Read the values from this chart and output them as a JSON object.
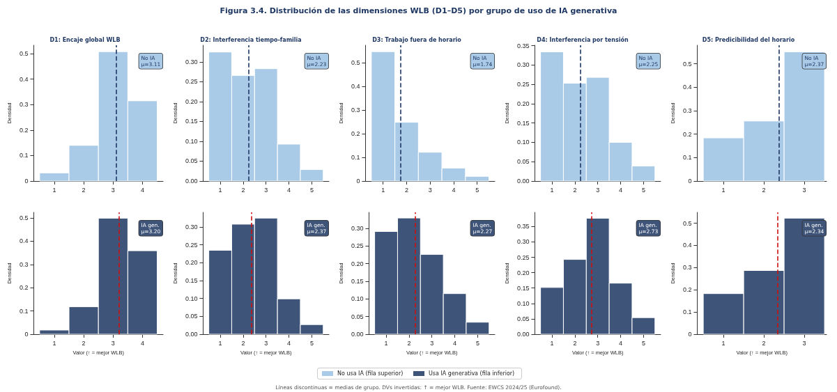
{
  "chart_data": [
    {
      "type": "other",
      "title": "Figura 3.4. Distribución de las dimensiones WLB (D1–D5) por grupo de uso de IA generativa",
      "annotations": [
        "Líneas discontinuas = medias de grupo. DVs invertidas: ↑ = mejor WLB. Fuente: EWCS 2024/25 (Eurofound)."
      ]
    },
    {
      "type": "histogram",
      "title": "D1: Encaje global WLB",
      "ylabel": "Densidad",
      "bins": [
        0.5,
        1.5,
        2.5,
        3.5,
        4.5
      ],
      "series": [
        {
          "name": "No usa IA (fila superior)",
          "color": "#aacbe8",
          "values": [
            0.032,
            0.14,
            0.508,
            0.315
          ]
        }
      ],
      "xlim": [
        0.3,
        4.7
      ],
      "xticks": [
        1,
        2,
        3,
        4
      ],
      "ylim": [
        0,
        0.533
      ],
      "yticks": [
        0.0,
        0.1,
        0.2,
        0.3,
        0.4,
        0.5
      ],
      "ref_lines": [
        {
          "axis": "x",
          "value": 3.11,
          "color": "#1f3864",
          "line_style": "dashed"
        }
      ],
      "annotations": [
        "No IA\nμ=3.11"
      ],
      "grid": false,
      "legend": "bottom"
    },
    {
      "type": "histogram",
      "title": "D2: Interferencia tiempo-familia",
      "ylabel": "Densidad",
      "bins": [
        0.5,
        1.5,
        2.5,
        3.5,
        4.5,
        5.5
      ],
      "series": [
        {
          "color": "#aacbe8",
          "values": [
            0.325,
            0.266,
            0.283,
            0.093,
            0.029
          ]
        }
      ],
      "xlim": [
        0.25,
        5.75
      ],
      "xticks": [
        1,
        2,
        3,
        4,
        5
      ],
      "ylim": [
        0,
        0.342
      ],
      "yticks": [
        {
          "value": 0,
          "label": "0.00"
        },
        {
          "value": 0.05,
          "label": "0.05"
        },
        {
          "value": 0.1,
          "label": "0.10"
        },
        {
          "value": 0.15,
          "label": "0.15"
        },
        {
          "value": 0.2,
          "label": "0.20"
        },
        {
          "value": 0.25,
          "label": "0.25"
        },
        {
          "value": 0.3,
          "label": "0.30"
        }
      ],
      "ref_lines": [
        {
          "axis": "x",
          "value": 2.23,
          "color": "#1f3864",
          "line_style": "dashed"
        }
      ],
      "annotations": [
        "No IA\nμ=2.23"
      ],
      "grid": false
    },
    {
      "type": "histogram",
      "title": "D3: Trabajo fuera de horario",
      "ylabel": "Densidad",
      "bins": [
        0.5,
        1.5,
        2.5,
        3.5,
        4.5,
        5.5
      ],
      "series": [
        {
          "color": "#aacbe8",
          "values": [
            0.548,
            0.249,
            0.122,
            0.055,
            0.02
          ]
        }
      ],
      "xlim": [
        0.25,
        5.75
      ],
      "xticks": [
        1,
        2,
        3,
        4,
        5
      ],
      "ylim": [
        0,
        0.575
      ],
      "yticks": [
        0.0,
        0.1,
        0.2,
        0.3,
        0.4,
        0.5
      ],
      "ref_lines": [
        {
          "axis": "x",
          "value": 1.74,
          "color": "#1f3864",
          "line_style": "dashed"
        }
      ],
      "annotations": [
        "No IA\nμ=1.74"
      ],
      "grid": false
    },
    {
      "type": "histogram",
      "title": "D4: Interferencia por tensión",
      "ylabel": "Densidad",
      "bins": [
        0.5,
        1.5,
        2.5,
        3.5,
        4.5,
        5.5
      ],
      "series": [
        {
          "color": "#aacbe8",
          "values": [
            0.334,
            0.253,
            0.268,
            0.1,
            0.039
          ]
        }
      ],
      "xlim": [
        0.25,
        5.75
      ],
      "xticks": [
        1,
        2,
        3,
        4,
        5
      ],
      "ylim": [
        0,
        0.351
      ],
      "yticks": [
        {
          "value": 0,
          "label": "0.00"
        },
        {
          "value": 0.05,
          "label": "0.05"
        },
        {
          "value": 0.1,
          "label": "0.10"
        },
        {
          "value": 0.15,
          "label": "0.15"
        },
        {
          "value": 0.2,
          "label": "0.20"
        },
        {
          "value": 0.25,
          "label": "0.25"
        },
        {
          "value": 0.3,
          "label": "0.30"
        },
        {
          "value": 0.35,
          "label": "0.35"
        }
      ],
      "ref_lines": [
        {
          "axis": "x",
          "value": 2.25,
          "color": "#1f3864",
          "line_style": "dashed"
        }
      ],
      "annotations": [
        "No IA\nμ=2.25"
      ],
      "grid": false
    },
    {
      "type": "histogram",
      "title": "D5: Predicibilidad del horario",
      "ylabel": "Densidad",
      "bins": [
        0.5,
        1.5,
        2.5,
        3.5
      ],
      "series": [
        {
          "color": "#aacbe8",
          "values": [
            0.184,
            0.256,
            0.551
          ]
        }
      ],
      "xlim": [
        0.35,
        3.55
      ],
      "xticks": [
        1,
        2,
        3
      ],
      "ylim": [
        0,
        0.579
      ],
      "yticks": [
        0.0,
        0.1,
        0.2,
        0.3,
        0.4,
        0.5
      ],
      "ref_lines": [
        {
          "axis": "x",
          "value": 2.37,
          "color": "#1f3864",
          "line_style": "dashed"
        }
      ],
      "annotations": [
        "No IA\nμ=2.37"
      ],
      "grid": false
    },
    {
      "type": "histogram",
      "xlabel": "Valor (↑ = mejor WLB)",
      "ylabel": "Densidad",
      "bins": [
        0.5,
        1.5,
        2.5,
        3.5,
        4.5
      ],
      "series": [
        {
          "name": "Usa IA generativa (fila inferior)",
          "color": "#3f5479",
          "values": [
            0.018,
            0.118,
            0.499,
            0.359
          ]
        }
      ],
      "xlim": [
        0.3,
        4.7
      ],
      "xticks": [
        1,
        2,
        3,
        4
      ],
      "ylim": [
        0,
        0.524
      ],
      "yticks": [
        0.0,
        0.1,
        0.2,
        0.3,
        0.4,
        0.5
      ],
      "ref_lines": [
        {
          "axis": "x",
          "value": 3.2,
          "color": "#cc1111",
          "line_style": "dashed"
        }
      ],
      "annotations": [
        "IA gen.\nμ=3.20"
      ],
      "grid": false,
      "legend": "bottom"
    },
    {
      "type": "histogram",
      "xlabel": "Valor (↑ = mejor WLB)",
      "ylabel": "Densidad",
      "bins": [
        0.5,
        1.5,
        2.5,
        3.5,
        4.5,
        5.5
      ],
      "series": [
        {
          "color": "#3f5479",
          "values": [
            0.235,
            0.308,
            0.325,
            0.099,
            0.027
          ]
        }
      ],
      "xlim": [
        0.25,
        5.75
      ],
      "xticks": [
        1,
        2,
        3,
        4,
        5
      ],
      "ylim": [
        0,
        0.341
      ],
      "yticks": [
        {
          "value": 0,
          "label": "0.00"
        },
        {
          "value": 0.05,
          "label": "0.05"
        },
        {
          "value": 0.1,
          "label": "0.10"
        },
        {
          "value": 0.15,
          "label": "0.15"
        },
        {
          "value": 0.2,
          "label": "0.20"
        },
        {
          "value": 0.25,
          "label": "0.25"
        },
        {
          "value": 0.3,
          "label": "0.30"
        }
      ],
      "ref_lines": [
        {
          "axis": "x",
          "value": 2.37,
          "color": "#cc1111",
          "line_style": "dashed"
        }
      ],
      "annotations": [
        "IA gen.\nμ=2.37"
      ],
      "grid": false
    },
    {
      "type": "histogram",
      "xlabel": "Valor (↑ = mejor WLB)",
      "ylabel": "Densidad",
      "bins": [
        0.5,
        1.5,
        2.5,
        3.5,
        4.5,
        5.5
      ],
      "series": [
        {
          "color": "#3f5479",
          "values": [
            0.291,
            0.329,
            0.226,
            0.115,
            0.034
          ]
        }
      ],
      "xlim": [
        0.25,
        5.75
      ],
      "xticks": [
        1,
        2,
        3,
        4,
        5
      ],
      "ylim": [
        0,
        0.345
      ],
      "yticks": [
        {
          "value": 0,
          "label": "0.00"
        },
        {
          "value": 0.05,
          "label": "0.05"
        },
        {
          "value": 0.1,
          "label": "0.10"
        },
        {
          "value": 0.15,
          "label": "0.15"
        },
        {
          "value": 0.2,
          "label": "0.20"
        },
        {
          "value": 0.25,
          "label": "0.25"
        },
        {
          "value": 0.3,
          "label": "0.30"
        }
      ],
      "ref_lines": [
        {
          "axis": "x",
          "value": 2.27,
          "color": "#cc1111",
          "line_style": "dashed"
        }
      ],
      "annotations": [
        "IA gen.\nμ=2.27"
      ],
      "grid": false
    },
    {
      "type": "histogram",
      "xlabel": "Valor (↑ = mejor WLB)",
      "ylabel": "Densidad",
      "bins": [
        0.5,
        1.5,
        2.5,
        3.5,
        4.5,
        5.5
      ],
      "series": [
        {
          "color": "#3f5479",
          "values": [
            0.152,
            0.243,
            0.377,
            0.166,
            0.054
          ]
        }
      ],
      "xlim": [
        0.25,
        5.75
      ],
      "xticks": [
        1,
        2,
        3,
        4,
        5
      ],
      "ylim": [
        0,
        0.396
      ],
      "yticks": [
        {
          "value": 0,
          "label": "0.00"
        },
        {
          "value": 0.05,
          "label": "0.05"
        },
        {
          "value": 0.1,
          "label": "0.10"
        },
        {
          "value": 0.15,
          "label": "0.15"
        },
        {
          "value": 0.2,
          "label": "0.20"
        },
        {
          "value": 0.25,
          "label": "0.25"
        },
        {
          "value": 0.3,
          "label": "0.30"
        },
        {
          "value": 0.35,
          "label": "0.35"
        }
      ],
      "ref_lines": [
        {
          "axis": "x",
          "value": 2.73,
          "color": "#cc1111",
          "line_style": "dashed"
        }
      ],
      "annotations": [
        "IA gen.\nμ=2.73"
      ],
      "grid": false
    },
    {
      "type": "histogram",
      "xlabel": "Valor (↑ = mejor WLB)",
      "ylabel": "Densidad",
      "bins": [
        0.5,
        1.5,
        2.5,
        3.5
      ],
      "series": [
        {
          "color": "#3f5479",
          "values": [
            0.183,
            0.287,
            0.523
          ]
        }
      ],
      "xlim": [
        0.35,
        3.55
      ],
      "xticks": [
        1,
        2,
        3
      ],
      "ylim": [
        0,
        0.549
      ],
      "yticks": [
        0.0,
        0.1,
        0.2,
        0.3,
        0.4,
        0.5
      ],
      "ref_lines": [
        {
          "axis": "x",
          "value": 2.34,
          "color": "#cc1111",
          "line_style": "dashed"
        }
      ],
      "annotations": [
        "IA gen.\nμ=2.34"
      ],
      "grid": false
    }
  ]
}
